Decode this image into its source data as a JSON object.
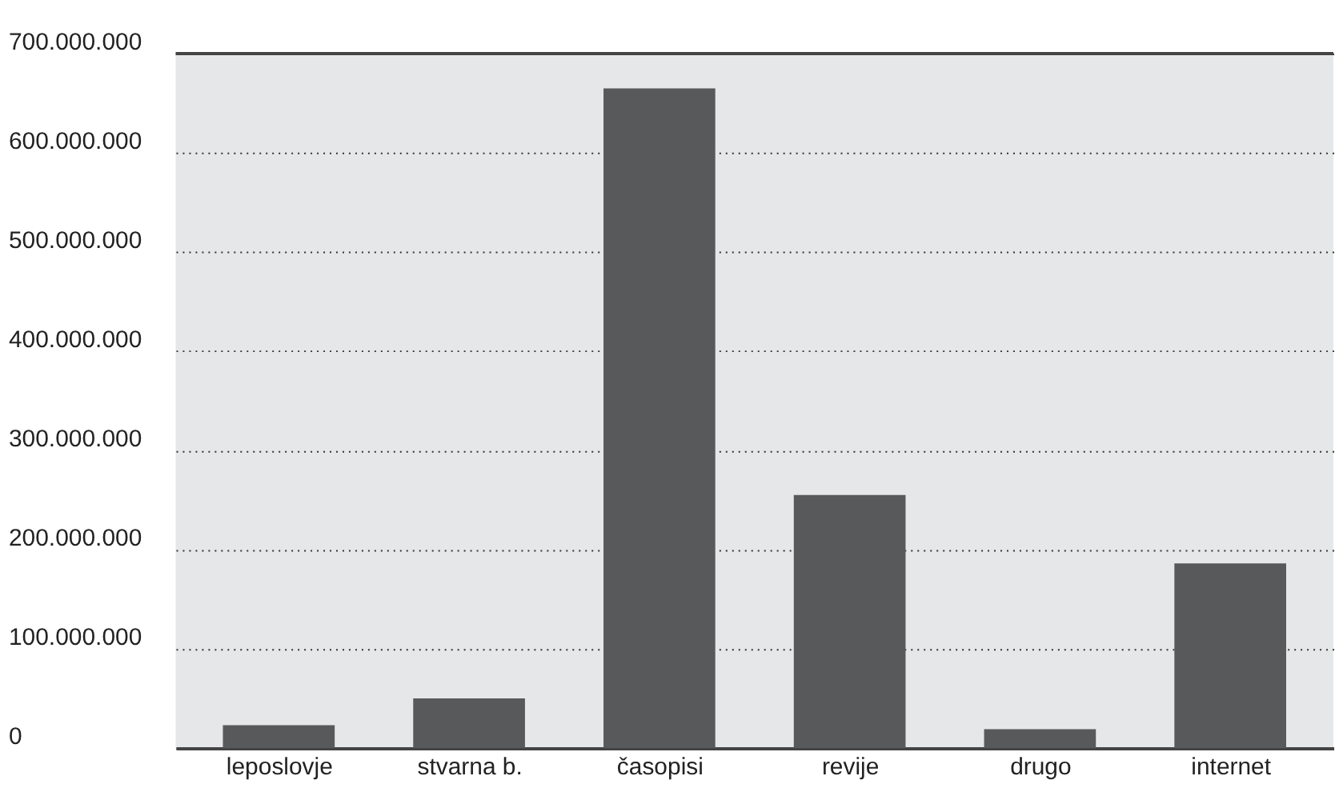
{
  "chart_data": {
    "type": "bar",
    "categories": [
      "leposlovje",
      "stvarna b.",
      "časopisi",
      "revije",
      "drugo",
      "internet"
    ],
    "values": [
      23000000,
      50000000,
      665000000,
      255000000,
      19000000,
      186000000
    ],
    "color": "#58595b",
    "ylim": [
      0,
      700000000
    ],
    "yticks": [
      {
        "value": 0,
        "label": "0"
      },
      {
        "value": 100000000,
        "label": "100.000.000"
      },
      {
        "value": 200000000,
        "label": "200.000.000"
      },
      {
        "value": 300000000,
        "label": "300.000.000"
      },
      {
        "value": 400000000,
        "label": "400.000.000"
      },
      {
        "value": 500000000,
        "label": "500.000.000"
      },
      {
        "value": 600000000,
        "label": "600.000.000"
      },
      {
        "value": 700000000,
        "label": "700.000.000"
      }
    ],
    "grid": "y"
  }
}
